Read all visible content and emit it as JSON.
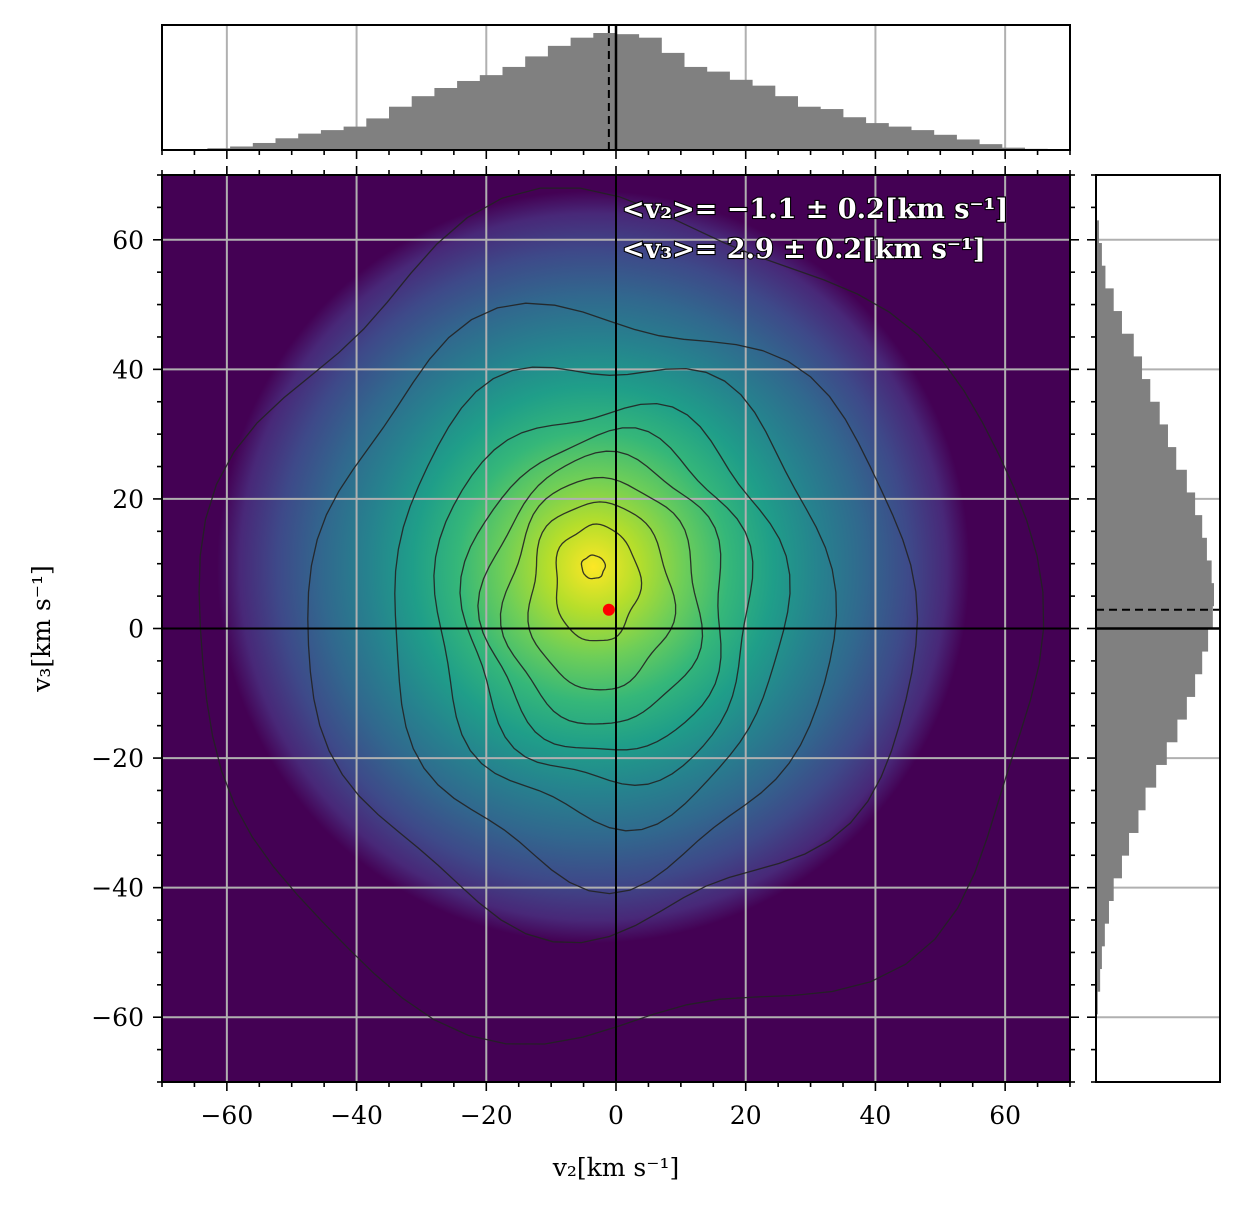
{
  "chart_data": {
    "type": "heatmap",
    "subtype": "2d-density-with-marginal-histograms",
    "colormap": "viridis",
    "xlabel": "v₂[km s⁻¹]",
    "ylabel": "v₃[km s⁻¹]",
    "xlim": [
      -70,
      70
    ],
    "ylim": [
      -70,
      70
    ],
    "xticks": [
      -60,
      -40,
      -20,
      0,
      20,
      40,
      60
    ],
    "yticks": [
      -60,
      -40,
      -20,
      0,
      20,
      40,
      60
    ],
    "xtick_labels": [
      "−60",
      "−40",
      "−20",
      "0",
      "20",
      "40",
      "60"
    ],
    "ytick_labels": [
      "−60",
      "−40",
      "−20",
      "0",
      "20",
      "40",
      "60"
    ],
    "grid": true,
    "density_peak": {
      "x": -3.5,
      "y": 9.5
    },
    "reference_lines": {
      "x": 0,
      "y": 0
    },
    "mean_point": {
      "x": -1.1,
      "y": 2.9,
      "color": "#ff0000"
    },
    "annotations": [
      "<v₂>= −1.1 ± 0.2[km s⁻¹]",
      "<v₃>= 2.9 ± 0.2[km s⁻¹]"
    ],
    "contour_levels_approx_radius": [
      {
        "level": 1,
        "cx": -3.5,
        "cy": 9.5,
        "rx": 1.8,
        "ry": 1.8
      },
      {
        "level": 2,
        "cx": -3.0,
        "cy": 7.0,
        "rx": 6.5,
        "ry": 9.0
      },
      {
        "level": 3,
        "cx": -2.5,
        "cy": 5.0,
        "rx": 11.0,
        "ry": 14.5
      },
      {
        "level": 4,
        "cx": -2.0,
        "cy": 4.0,
        "rx": 15.0,
        "ry": 19.0
      },
      {
        "level": 5,
        "cx": -1.5,
        "cy": 3.5,
        "rx": 18.5,
        "ry": 23.0
      },
      {
        "level": 6,
        "cx": -1.0,
        "cy": 3.0,
        "rx": 22.0,
        "ry": 27.0
      },
      {
        "level": 7,
        "cx": -1.0,
        "cy": 2.5,
        "rx": 27.0,
        "ry": 32.0
      },
      {
        "level": 8,
        "cx": -1.0,
        "cy": 2.0,
        "rx": 34.0,
        "ry": 40.0
      },
      {
        "level": 9,
        "cx": -1.0,
        "cy": 1.5,
        "rx": 47.0,
        "ry": 47.5
      },
      {
        "level": 10,
        "cx": 0.5,
        "cy": 0.0,
        "rx": 65.0,
        "ry": 64.0
      }
    ],
    "top_histogram": {
      "bin_width": 3.5,
      "bin_centers": [
        -68.25,
        -64.75,
        -61.25,
        -57.75,
        -54.25,
        -50.75,
        -47.25,
        -43.75,
        -40.25,
        -36.75,
        -33.25,
        -29.75,
        -26.25,
        -22.75,
        -19.25,
        -15.75,
        -12.25,
        -8.75,
        -5.25,
        -1.75,
        1.75,
        5.25,
        8.75,
        12.25,
        15.75,
        19.25,
        22.75,
        26.25,
        29.75,
        33.25,
        36.75,
        40.25,
        43.75,
        47.25,
        50.75,
        54.25,
        57.75,
        61.25,
        64.75,
        68.25
      ],
      "counts": [
        0.5,
        0.8,
        1.5,
        3,
        6,
        10,
        14,
        17,
        20,
        27,
        37,
        46,
        53,
        59,
        64,
        71,
        80,
        89,
        96,
        100,
        99,
        96,
        83,
        71,
        67,
        60,
        55,
        46,
        37,
        35,
        28,
        23,
        20,
        17,
        13,
        9,
        5,
        2,
        1,
        0.5
      ],
      "mean_line": -1.1,
      "zero_line": 0
    },
    "right_histogram": {
      "bin_width": 3.5,
      "bin_centers": [
        -68.25,
        -64.75,
        -61.25,
        -57.75,
        -54.25,
        -50.75,
        -47.25,
        -43.75,
        -40.25,
        -36.75,
        -33.25,
        -29.75,
        -26.25,
        -22.75,
        -19.25,
        -15.75,
        -12.25,
        -8.75,
        -5.25,
        -1.75,
        1.75,
        5.25,
        8.75,
        12.25,
        15.75,
        19.25,
        22.75,
        26.25,
        29.75,
        33.25,
        36.75,
        40.25,
        43.75,
        47.25,
        50.75,
        54.25,
        57.75,
        61.25,
        64.75,
        68.25
      ],
      "counts": [
        0,
        0,
        0.3,
        1.5,
        3.5,
        5,
        7.5,
        11,
        15,
        22,
        28,
        36,
        42,
        51,
        60,
        69,
        77,
        84,
        90,
        95,
        99,
        100,
        98,
        94,
        90,
        84,
        77,
        68,
        61,
        54,
        46,
        39,
        32,
        22,
        15,
        8,
        5,
        2.5,
        0.5,
        0
      ],
      "mean_line": 2.9,
      "zero_line": 0
    }
  }
}
